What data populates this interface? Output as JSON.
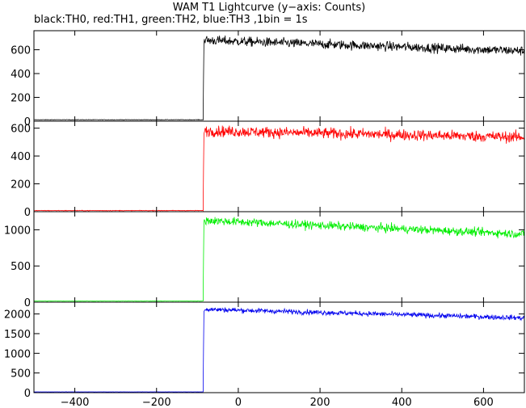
{
  "chart_data": {
    "type": "line",
    "title": "WAM T1 Lightcurve (y−axis: Counts)",
    "subtitle": "black:TH0, red:TH1, green:TH2, blue:TH3 ,1bin = 1s",
    "xlim": [
      -500,
      700
    ],
    "x_ticks": [
      -400,
      -200,
      0,
      200,
      400,
      600
    ],
    "x_tick_labels": [
      "−400",
      "−200",
      "0",
      "200",
      "400",
      "600"
    ],
    "trigger_x": -85,
    "panels": [
      {
        "color": "#000000",
        "ylim": [
          0,
          760
        ],
        "y_ticks": [
          0,
          200,
          400,
          600
        ],
        "y_tick_labels": [
          "0",
          "200",
          "400",
          "600"
        ],
        "pre_level": 12,
        "post_start": 680,
        "post_end": 590,
        "noise": 28
      },
      {
        "color": "#ff0000",
        "ylim": [
          0,
          650
        ],
        "y_ticks": [
          0,
          200,
          400,
          600
        ],
        "y_tick_labels": [
          "0",
          "200",
          "400",
          "600"
        ],
        "pre_level": 8,
        "post_start": 580,
        "post_end": 535,
        "noise": 28
      },
      {
        "color": "#00ee00",
        "ylim": [
          0,
          1250
        ],
        "y_ticks": [
          0,
          500,
          1000
        ],
        "y_tick_labels": [
          "0",
          "500",
          "1000"
        ],
        "pre_level": 15,
        "post_start": 1130,
        "post_end": 940,
        "noise": 40
      },
      {
        "color": "#0000ee",
        "ylim": [
          0,
          2300
        ],
        "y_ticks": [
          0,
          500,
          1000,
          1500,
          2000
        ],
        "y_tick_labels": [
          "0",
          "500",
          "1000",
          "1500",
          "2000"
        ],
        "pre_level": 20,
        "post_start": 2120,
        "post_end": 1900,
        "noise": 45
      }
    ]
  }
}
